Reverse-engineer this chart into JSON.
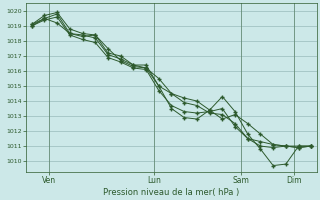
{
  "ylabel_ticks": [
    1010,
    1011,
    1012,
    1013,
    1014,
    1015,
    1016,
    1017,
    1018,
    1019,
    1020
  ],
  "ylim": [
    1009.3,
    1020.5
  ],
  "background_color": "#cce8e8",
  "grid_color": "#99bbbb",
  "line_color": "#2d5a2d",
  "marker_color": "#2d5a2d",
  "x_tick_labels": [
    "Ven",
    "Lun",
    "Sam",
    "Dim"
  ],
  "x_tick_positions": [
    1,
    7,
    12,
    15
  ],
  "xlabel": "Pression niveau de la mer( hPa )",
  "series": [
    [
      1019.0,
      1019.5,
      1019.2,
      1018.5,
      1018.3,
      1018.4,
      1017.5,
      1016.7,
      1016.3,
      1016.2,
      1015.5,
      1014.5,
      1013.9,
      1013.7,
      1013.2,
      1013.1,
      1012.5,
      1011.5,
      1011.0,
      1010.9,
      1011.0,
      1011.0,
      1011.0
    ],
    [
      1019.1,
      1019.7,
      1019.9,
      1018.8,
      1018.5,
      1018.4,
      1017.2,
      1017.0,
      1016.4,
      1016.4,
      1015.0,
      1014.5,
      1014.2,
      1014.0,
      1013.4,
      1012.8,
      1013.1,
      1012.5,
      1011.8,
      1011.1,
      1011.0,
      1010.9,
      1011.0
    ],
    [
      1019.1,
      1019.5,
      1019.8,
      1018.5,
      1018.4,
      1018.2,
      1017.1,
      1016.8,
      1016.4,
      1016.2,
      1015.0,
      1013.5,
      1012.9,
      1012.8,
      1013.4,
      1014.3,
      1013.3,
      1011.8,
      1010.8,
      1009.7,
      1009.8,
      1011.0,
      1011.0
    ],
    [
      1019.0,
      1019.4,
      1019.6,
      1018.4,
      1018.1,
      1017.9,
      1016.9,
      1016.6,
      1016.2,
      1016.1,
      1014.7,
      1013.7,
      1013.3,
      1013.2,
      1013.3,
      1013.5,
      1012.3,
      1011.5,
      1011.3,
      1011.1,
      1011.0,
      1010.9,
      1011.0
    ]
  ],
  "n_points": 23,
  "xlim": [
    -0.3,
    16.3
  ]
}
